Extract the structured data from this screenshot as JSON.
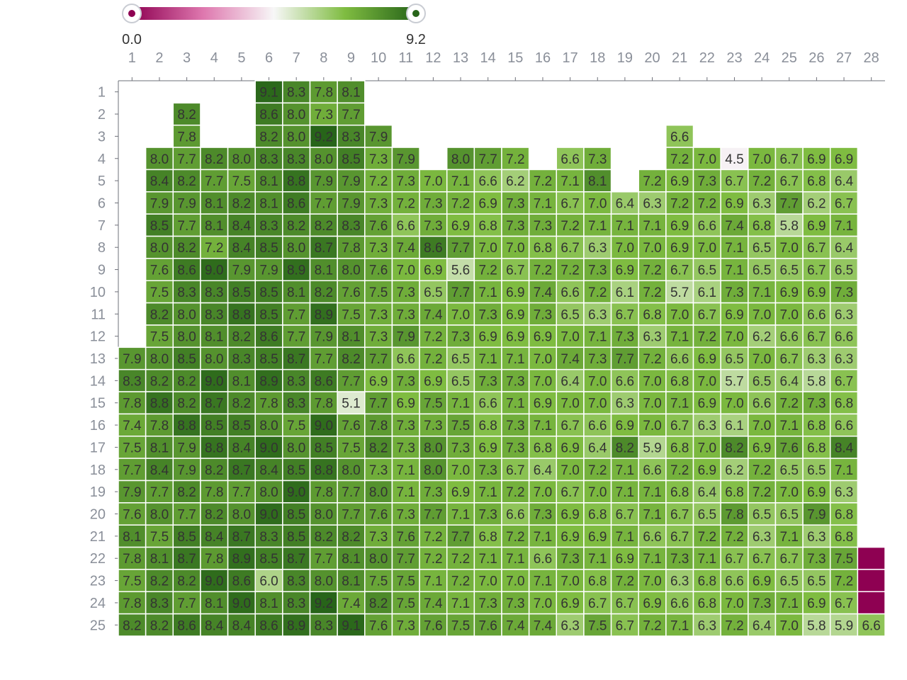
{
  "chart_data": {
    "type": "heatmap",
    "x_categories": [
      "1",
      "2",
      "3",
      "4",
      "5",
      "6",
      "7",
      "8",
      "9",
      "10",
      "11",
      "12",
      "13",
      "14",
      "15",
      "16",
      "17",
      "18",
      "19",
      "20",
      "21",
      "22",
      "23",
      "24",
      "25",
      "26",
      "27",
      "28"
    ],
    "y_categories": [
      "1",
      "2",
      "3",
      "4",
      "5",
      "6",
      "7",
      "8",
      "9",
      "10",
      "11",
      "12",
      "13",
      "14",
      "15",
      "16",
      "17",
      "18",
      "19",
      "20",
      "21",
      "22",
      "23",
      "24",
      "25"
    ],
    "value_range": [
      0.0,
      9.2
    ],
    "legend": {
      "min_label": "0.0",
      "max_label": "9.2",
      "placement": "top-left",
      "colors": [
        "#8e0152",
        "#de77ae",
        "#f7f7f7",
        "#7fbc41",
        "#276419"
      ]
    },
    "rows": [
      [
        null,
        null,
        null,
        null,
        null,
        9.1,
        8.3,
        7.8,
        8.1,
        null,
        null,
        null,
        null,
        null,
        null,
        null,
        null,
        null,
        null,
        null,
        null,
        null,
        null,
        null,
        null,
        null,
        null,
        null
      ],
      [
        null,
        null,
        8.2,
        null,
        null,
        8.6,
        8.0,
        7.3,
        7.7,
        null,
        null,
        null,
        null,
        null,
        null,
        null,
        null,
        null,
        null,
        null,
        null,
        null,
        null,
        null,
        null,
        null,
        null,
        null
      ],
      [
        null,
        null,
        7.8,
        null,
        null,
        8.2,
        8.0,
        9.2,
        8.3,
        7.9,
        null,
        null,
        null,
        null,
        null,
        null,
        null,
        null,
        null,
        null,
        6.6,
        null,
        null,
        null,
        null,
        null,
        null,
        null
      ],
      [
        null,
        8.0,
        7.7,
        8.2,
        8.0,
        8.3,
        8.3,
        8.0,
        8.5,
        7.3,
        7.9,
        null,
        8.0,
        7.7,
        7.2,
        null,
        6.6,
        7.3,
        null,
        null,
        7.2,
        7.0,
        4.5,
        7.0,
        6.7,
        6.9,
        6.9,
        null
      ],
      [
        null,
        8.4,
        8.2,
        7.7,
        7.5,
        8.1,
        8.8,
        7.9,
        7.9,
        7.2,
        7.3,
        7.0,
        7.1,
        6.6,
        6.2,
        7.2,
        7.1,
        8.1,
        null,
        7.2,
        6.9,
        7.3,
        6.7,
        7.2,
        6.7,
        6.8,
        6.4,
        null
      ],
      [
        null,
        7.9,
        7.9,
        8.1,
        8.2,
        8.1,
        8.6,
        7.7,
        7.9,
        7.3,
        7.2,
        7.3,
        7.2,
        6.9,
        7.3,
        7.1,
        6.7,
        7.0,
        6.4,
        6.3,
        7.2,
        7.2,
        6.9,
        6.3,
        7.7,
        6.2,
        6.7,
        null
      ],
      [
        null,
        8.5,
        7.7,
        8.1,
        8.4,
        8.3,
        8.2,
        8.2,
        8.3,
        7.6,
        6.6,
        7.3,
        6.9,
        6.8,
        7.3,
        7.3,
        7.2,
        7.1,
        7.1,
        7.1,
        6.9,
        6.6,
        7.4,
        6.8,
        5.8,
        6.9,
        7.1,
        null
      ],
      [
        null,
        8.0,
        8.2,
        7.2,
        8.4,
        8.5,
        8.0,
        8.7,
        7.8,
        7.3,
        7.4,
        8.6,
        7.7,
        7.0,
        7.0,
        6.8,
        6.7,
        6.3,
        7.0,
        7.0,
        6.9,
        7.0,
        7.1,
        6.5,
        7.0,
        6.7,
        6.4,
        null
      ],
      [
        null,
        7.6,
        8.6,
        9.0,
        7.9,
        7.9,
        8.9,
        8.1,
        8.0,
        7.6,
        7.0,
        6.9,
        5.6,
        7.2,
        6.7,
        7.2,
        7.2,
        7.3,
        6.9,
        7.2,
        6.7,
        6.5,
        7.1,
        6.5,
        6.5,
        6.7,
        6.5,
        null
      ],
      [
        null,
        7.5,
        8.3,
        8.3,
        8.5,
        8.5,
        8.1,
        8.2,
        7.6,
        7.5,
        7.3,
        6.5,
        7.7,
        7.1,
        6.9,
        7.4,
        6.6,
        7.2,
        6.1,
        7.2,
        5.7,
        6.1,
        7.3,
        7.1,
        6.9,
        6.9,
        7.3,
        null
      ],
      [
        null,
        8.2,
        8.0,
        8.3,
        8.8,
        8.5,
        7.7,
        8.9,
        7.5,
        7.3,
        7.3,
        7.4,
        7.0,
        7.3,
        6.9,
        7.3,
        6.5,
        6.3,
        6.7,
        6.8,
        7.0,
        6.7,
        6.9,
        7.0,
        7.0,
        6.6,
        6.3,
        null
      ],
      [
        null,
        7.5,
        8.0,
        8.1,
        8.2,
        8.6,
        7.7,
        7.9,
        8.1,
        7.3,
        7.9,
        7.2,
        7.3,
        6.9,
        6.9,
        6.9,
        7.0,
        7.1,
        7.3,
        6.3,
        7.1,
        7.2,
        7.0,
        6.2,
        6.6,
        6.7,
        6.6,
        null
      ],
      [
        7.9,
        8.0,
        8.5,
        8.0,
        8.3,
        8.5,
        8.7,
        7.7,
        8.2,
        7.7,
        6.6,
        7.2,
        6.5,
        7.1,
        7.1,
        7.0,
        7.4,
        7.3,
        7.7,
        7.2,
        6.6,
        6.9,
        6.5,
        7.0,
        6.7,
        6.3,
        6.3,
        null
      ],
      [
        8.3,
        8.2,
        8.2,
        9.0,
        8.1,
        8.9,
        8.3,
        8.6,
        7.7,
        6.9,
        7.3,
        6.9,
        6.5,
        7.3,
        7.3,
        7.0,
        6.4,
        7.0,
        6.6,
        7.0,
        6.8,
        7.0,
        5.7,
        6.5,
        6.4,
        5.8,
        6.7,
        null
      ],
      [
        7.8,
        8.8,
        8.2,
        8.7,
        8.2,
        7.8,
        8.3,
        7.8,
        5.1,
        7.7,
        6.9,
        7.5,
        7.1,
        6.6,
        7.1,
        6.9,
        7.0,
        7.0,
        6.3,
        7.0,
        7.1,
        6.9,
        7.0,
        6.6,
        7.2,
        7.3,
        6.8,
        null
      ],
      [
        7.4,
        7.8,
        8.8,
        8.5,
        8.5,
        8.0,
        7.5,
        9.0,
        7.6,
        7.8,
        7.3,
        7.3,
        7.5,
        6.8,
        7.3,
        7.1,
        6.7,
        6.6,
        6.9,
        7.0,
        6.7,
        6.3,
        6.1,
        7.0,
        7.1,
        6.8,
        6.6,
        null
      ],
      [
        7.5,
        8.1,
        7.9,
        8.8,
        8.4,
        9.0,
        8.0,
        8.5,
        7.5,
        8.2,
        7.3,
        8.0,
        7.3,
        6.9,
        7.3,
        6.8,
        6.9,
        6.4,
        8.2,
        5.9,
        6.8,
        7.0,
        8.2,
        6.9,
        7.6,
        6.8,
        8.4,
        null
      ],
      [
        7.7,
        8.4,
        7.9,
        8.2,
        8.7,
        8.4,
        8.5,
        8.8,
        8.0,
        7.3,
        7.1,
        8.0,
        7.0,
        7.3,
        6.7,
        6.4,
        7.0,
        7.2,
        7.1,
        6.6,
        7.2,
        6.9,
        6.2,
        7.2,
        6.5,
        6.5,
        7.1,
        null
      ],
      [
        7.9,
        7.7,
        8.2,
        7.8,
        7.7,
        8.0,
        9.0,
        7.8,
        7.7,
        8.0,
        7.1,
        7.3,
        6.9,
        7.1,
        7.2,
        7.0,
        6.7,
        7.0,
        7.1,
        7.1,
        6.8,
        6.4,
        6.8,
        7.2,
        7.0,
        6.9,
        6.3,
        null
      ],
      [
        7.6,
        8.0,
        7.7,
        8.2,
        8.0,
        9.0,
        8.5,
        8.0,
        7.7,
        7.6,
        7.3,
        7.7,
        7.1,
        7.3,
        6.6,
        7.3,
        6.9,
        6.8,
        6.7,
        7.1,
        6.7,
        6.5,
        7.8,
        6.5,
        6.5,
        7.9,
        6.8,
        null
      ],
      [
        8.1,
        7.5,
        8.5,
        8.4,
        8.7,
        8.3,
        8.5,
        8.2,
        8.2,
        7.3,
        7.6,
        7.2,
        7.7,
        6.8,
        7.2,
        7.1,
        6.9,
        6.9,
        7.1,
        6.6,
        6.7,
        7.2,
        7.2,
        6.3,
        7.1,
        6.3,
        6.8,
        null
      ],
      [
        7.8,
        8.1,
        8.7,
        7.8,
        8.9,
        8.5,
        8.7,
        7.7,
        8.1,
        8.0,
        7.7,
        7.2,
        7.2,
        7.1,
        7.1,
        6.6,
        7.3,
        7.1,
        6.9,
        7.1,
        7.3,
        7.1,
        6.7,
        6.7,
        6.7,
        7.3,
        7.5,
        0.0
      ],
      [
        7.5,
        8.2,
        8.2,
        9.0,
        8.6,
        6.0,
        8.3,
        8.0,
        8.1,
        7.5,
        7.5,
        7.1,
        7.2,
        7.0,
        7.0,
        7.1,
        7.0,
        6.8,
        7.2,
        7.0,
        6.3,
        6.8,
        6.6,
        6.9,
        6.5,
        6.5,
        7.2,
        0.0
      ],
      [
        7.8,
        8.3,
        7.7,
        8.1,
        9.0,
        8.1,
        8.3,
        9.2,
        7.4,
        8.2,
        7.5,
        7.4,
        7.1,
        7.3,
        7.3,
        7.0,
        6.9,
        6.7,
        6.7,
        6.9,
        6.6,
        6.8,
        7.0,
        7.3,
        7.1,
        6.9,
        6.7,
        0.0
      ],
      [
        8.2,
        8.2,
        8.6,
        8.4,
        8.4,
        8.6,
        8.9,
        8.3,
        9.1,
        7.6,
        7.3,
        7.6,
        7.5,
        7.6,
        7.4,
        7.4,
        6.3,
        7.5,
        6.7,
        7.2,
        7.1,
        6.3,
        7.2,
        6.4,
        7.0,
        5.8,
        5.9,
        6.6
      ]
    ],
    "hidden_labels": [
      [
        22,
        28
      ],
      [
        23,
        28
      ],
      [
        24,
        28
      ]
    ]
  }
}
